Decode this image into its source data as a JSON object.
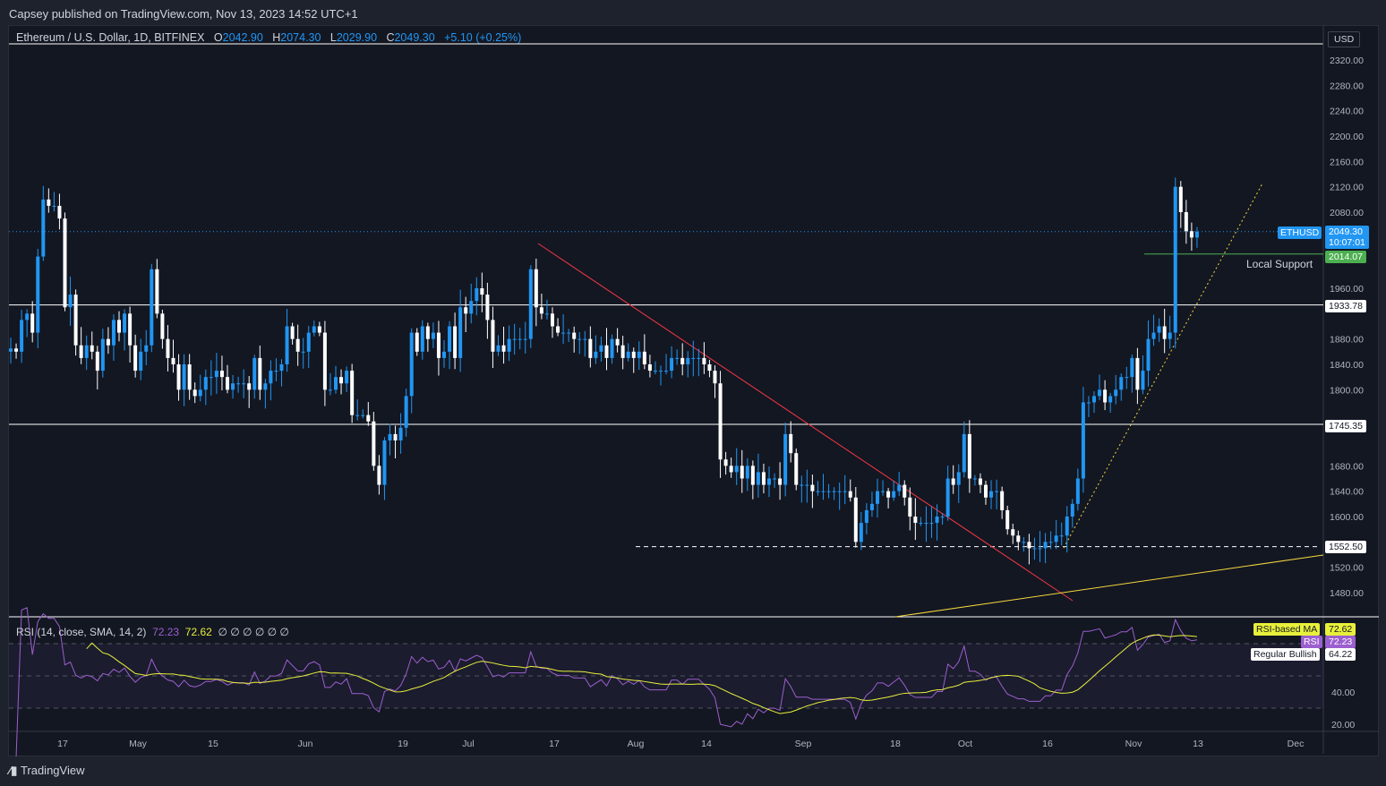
{
  "publish_line": "Capsey published on TradingView.com, Nov 13, 2023 14:52 UTC+1",
  "header": {
    "symbol": "Ethereum / U.S. Dollar, 1D, BITFINEX",
    "o_label": "O",
    "o": "2042.90",
    "h_label": "H",
    "h": "2074.30",
    "l_label": "L",
    "l": "2029.90",
    "c_label": "C",
    "c": "2049.30",
    "change": "+5.10 (+0.25%)"
  },
  "currency": "USD",
  "brand": "TradingView",
  "tags": {
    "ticker": "ETHUSD",
    "last_price": "2049.30",
    "countdown": "10:07:01",
    "support_price": "2014.07",
    "support_label": "Local Support",
    "level_1": "1933.78",
    "level_2": "1745.35",
    "level_3": "1552.50"
  },
  "rsi": {
    "title": "RSI (14, close, SMA, 14, 2)",
    "rsi_value": "72.23",
    "ma_value": "72.62",
    "nulls": "∅ ∅ ∅ ∅ ∅ ∅",
    "ma_label": "RSI-based MA",
    "rsi_label": "RSI",
    "bullish_label": "Regular Bullish",
    "bullish_value": "64.22",
    "ticks": [
      "20.00",
      "40.00"
    ]
  },
  "colors": {
    "up": "#2196f3",
    "down": "#ffffff",
    "rsi": "#9c5fcf",
    "rsi_ma": "#e8f03b",
    "support": "#4caf50",
    "trend_down": "#f23645",
    "trend_up": "#f5d63d"
  },
  "chart_data": {
    "type": "candlestick",
    "start_date": "2023-04-08",
    "interval": "1D",
    "closes": [
      1865,
      1860,
      1910,
      1920,
      1890,
      2010,
      2100,
      2090,
      2090,
      2070,
      1930,
      1950,
      1870,
      1850,
      1870,
      1860,
      1830,
      1880,
      1870,
      1910,
      1890,
      1920,
      1870,
      1830,
      1860,
      1870,
      1990,
      1920,
      1880,
      1850,
      1840,
      1800,
      1840,
      1800,
      1790,
      1800,
      1820,
      1820,
      1830,
      1820,
      1800,
      1810,
      1810,
      1810,
      1800,
      1850,
      1800,
      1810,
      1830,
      1830,
      1840,
      1900,
      1880,
      1860,
      1860,
      1890,
      1900,
      1890,
      1800,
      1800,
      1820,
      1810,
      1830,
      1760,
      1760,
      1760,
      1750,
      1680,
      1650,
      1720,
      1730,
      1720,
      1740,
      1790,
      1890,
      1860,
      1900,
      1880,
      1890,
      1850,
      1860,
      1900,
      1850,
      1930,
      1920,
      1940,
      1960,
      1950,
      1910,
      1860,
      1870,
      1860,
      1880,
      1880,
      1880,
      1880,
      1990,
      1930,
      1920,
      1920,
      1900,
      1890,
      1890,
      1890,
      1880,
      1880,
      1880,
      1850,
      1860,
      1870,
      1850,
      1880,
      1870,
      1850,
      1860,
      1850,
      1860,
      1840,
      1830,
      1830,
      1830,
      1830,
      1850,
      1850,
      1840,
      1850,
      1850,
      1850,
      1840,
      1830,
      1810,
      1690,
      1680,
      1670,
      1680,
      1660,
      1680,
      1650,
      1670,
      1650,
      1660,
      1660,
      1650,
      1730,
      1700,
      1650,
      1650,
      1650,
      1640,
      1640,
      1640,
      1640,
      1640,
      1640,
      1640,
      1630,
      1560,
      1590,
      1610,
      1620,
      1640,
      1640,
      1630,
      1640,
      1650,
      1630,
      1600,
      1590,
      1590,
      1590,
      1590,
      1600,
      1600,
      1660,
      1650,
      1670,
      1730,
      1660,
      1660,
      1650,
      1630,
      1640,
      1640,
      1610,
      1580,
      1570,
      1560,
      1560,
      1550,
      1550,
      1550,
      1560,
      1560,
      1570,
      1570,
      1600,
      1620,
      1660,
      1780,
      1780,
      1790,
      1800,
      1780,
      1790,
      1800,
      1820,
      1820,
      1850,
      1800,
      1830,
      1880,
      1890,
      1900,
      1880,
      1890,
      2120,
      2080,
      2050,
      2040,
      2049.3
    ],
    "y_ticks": [
      2320,
      2280,
      2240,
      2200,
      2160,
      2120,
      2080,
      2040,
      2000,
      1960,
      1920,
      1880,
      1840,
      1800,
      1760,
      1720,
      1680,
      1640,
      1600,
      1560,
      1520,
      1480
    ],
    "x_ticks": [
      "17",
      "May",
      "15",
      "Jun",
      "19",
      "Jul",
      "17",
      "Aug",
      "14",
      "Sep",
      "18",
      "Oct",
      "16",
      "Nov",
      "13",
      "Dec"
    ],
    "horizontal_levels": [
      1933.78,
      1745.35,
      1552.5,
      2014.07
    ]
  }
}
